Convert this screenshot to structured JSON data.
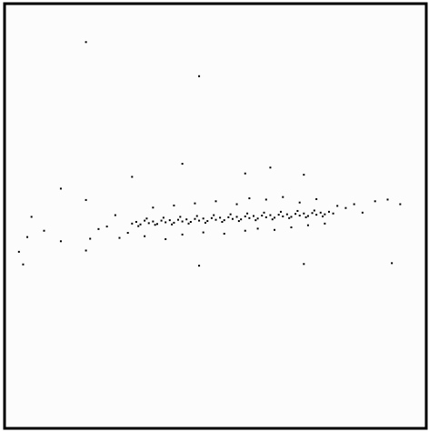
{
  "chart_data": {
    "type": "scatter",
    "xlim": [
      0,
      100
    ],
    "ylim": [
      0,
      100
    ],
    "color": "#000000",
    "x": [
      30,
      31,
      32,
      33,
      34,
      35,
      36,
      37,
      38,
      39,
      40,
      41,
      42,
      43,
      44,
      45,
      46,
      47,
      48,
      49,
      50,
      51,
      52,
      53,
      54,
      55,
      56,
      57,
      58,
      59,
      60,
      61,
      62,
      63,
      64,
      65,
      66,
      67,
      68,
      69,
      70,
      71,
      72,
      73,
      74,
      75,
      76,
      77,
      78,
      31.5,
      33.5,
      35.5,
      37.5,
      39.5,
      41.5,
      43.5,
      45.5,
      47.5,
      49.5,
      51.5,
      53.5,
      55.5,
      57.5,
      59.5,
      61.5,
      63.5,
      65.5,
      67.5,
      69.5,
      71.5,
      73.5,
      75.5,
      24,
      26,
      22,
      27,
      29,
      33,
      35,
      38,
      40,
      42,
      45,
      47,
      50,
      52,
      55,
      57,
      58,
      60,
      62,
      64,
      66,
      68,
      70,
      72,
      74,
      76,
      79,
      81,
      83,
      85,
      88,
      91,
      94,
      6,
      5,
      3,
      9,
      13,
      20,
      19,
      13,
      19,
      4,
      46,
      71,
      92,
      42,
      30,
      19,
      46,
      63,
      71,
      57
    ],
    "y": [
      48.2,
      48.6,
      48.0,
      48.9,
      48.3,
      48.7,
      48.1,
      48.9,
      48.5,
      49.0,
      48.4,
      49.1,
      48.7,
      49.2,
      48.6,
      49.3,
      48.9,
      49.4,
      48.8,
      49.5,
      49.1,
      49.6,
      49.0,
      49.7,
      49.3,
      49.8,
      49.2,
      49.9,
      49.5,
      50.0,
      49.4,
      50.1,
      49.7,
      50.2,
      49.6,
      50.3,
      49.9,
      50.4,
      49.8,
      50.5,
      50.1,
      50.6,
      50.0,
      50.7,
      50.3,
      50.8,
      50.4,
      51.0,
      50.6,
      47.6,
      49.4,
      47.9,
      49.6,
      48.0,
      49.8,
      48.2,
      50.0,
      48.4,
      50.2,
      48.6,
      50.4,
      48.8,
      50.6,
      49.0,
      50.8,
      49.2,
      51.0,
      49.5,
      51.2,
      49.7,
      51.3,
      49.9,
      47.5,
      50.2,
      46.9,
      44.8,
      46.0,
      45.2,
      52.0,
      44.5,
      52.5,
      45.6,
      53.0,
      46.1,
      53.5,
      45.8,
      52.8,
      46.5,
      54.2,
      47.0,
      53.9,
      46.7,
      54.5,
      47.3,
      53.2,
      47.8,
      54.0,
      48.2,
      52.4,
      51.9,
      52.8,
      50.8,
      53.5,
      53.9,
      52.8,
      49.8,
      45.0,
      41.5,
      46.5,
      44.0,
      44.6,
      41.8,
      56.5,
      53.8,
      38.5,
      38.2,
      38.6,
      38.8,
      62.4,
      59.3,
      91.3,
      83.2,
      61.5,
      59.8,
      60.1
    ]
  }
}
